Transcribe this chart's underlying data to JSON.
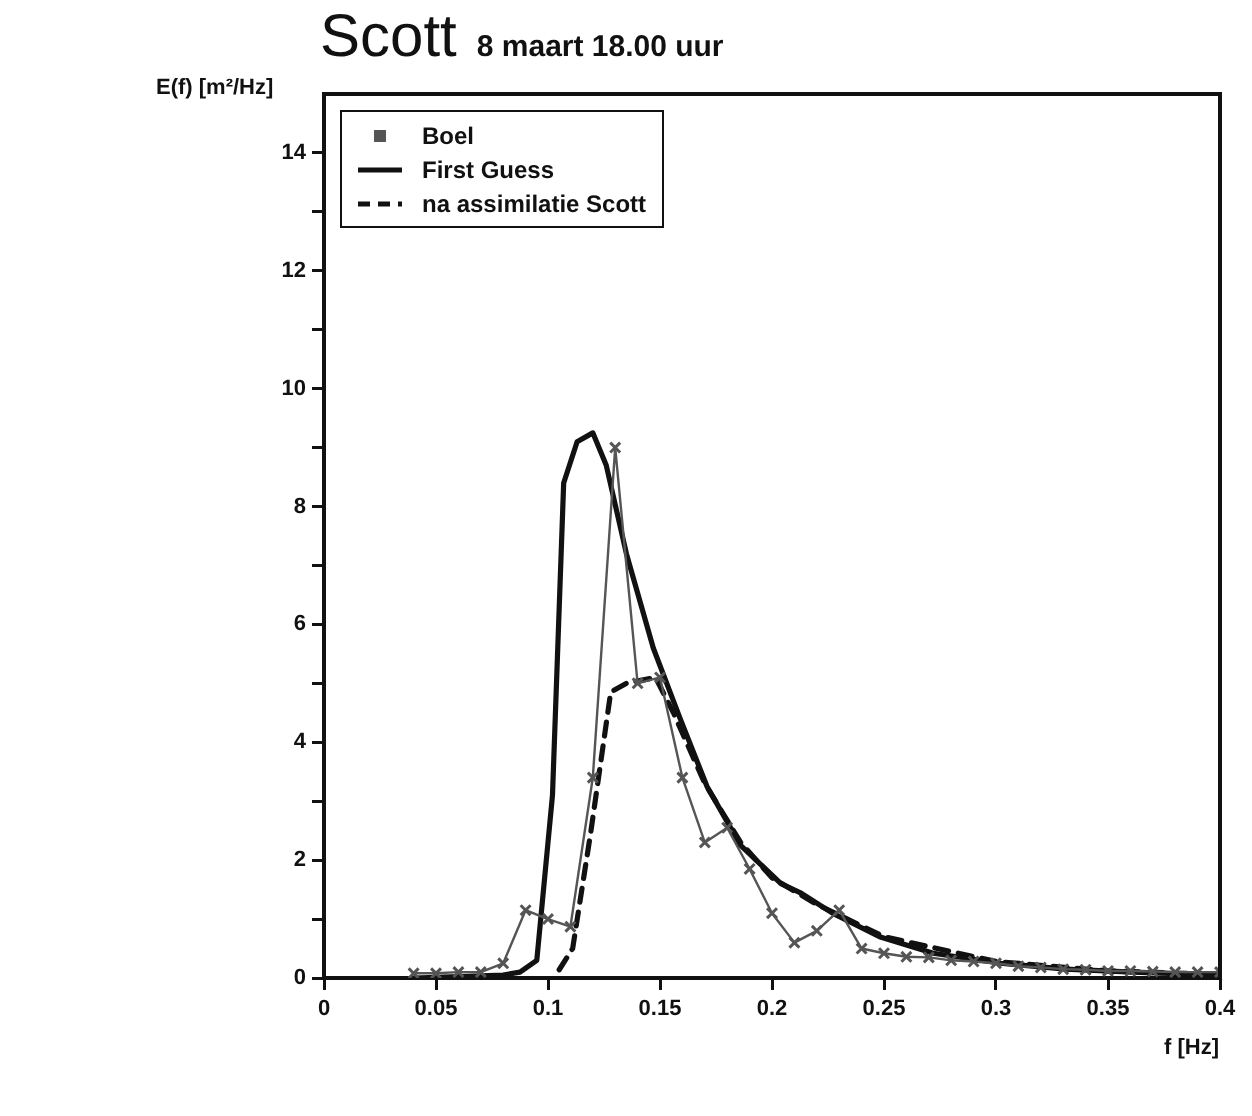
{
  "chart_data": {
    "type": "line",
    "title": "Scott",
    "subtitle": "8 maart 18.00 uur",
    "xlabel": "f [Hz]",
    "ylabel": "E(f) [m²/Hz]",
    "xlim": [
      0,
      0.4
    ],
    "xticks": [
      0,
      0.05,
      0.1,
      0.15,
      0.2,
      0.25,
      0.3,
      0.35,
      0.4
    ],
    "ylim": [
      0,
      15
    ],
    "yticks": [
      0,
      {
        "value": 1,
        "label": null
      },
      2,
      {
        "value": 3,
        "label": null
      },
      4,
      {
        "value": 5,
        "label": null
      },
      6,
      {
        "value": 7,
        "label": null
      },
      8,
      {
        "value": 9,
        "label": null
      },
      10,
      {
        "value": 11,
        "label": null
      },
      12,
      {
        "value": 13,
        "label": null
      },
      14
    ],
    "grid": false,
    "legend": "top left",
    "series": [
      {
        "name": "Boel",
        "color": "#555555",
        "marker": "cross",
        "line_style": "solid",
        "x": [
          0.04,
          0.05,
          0.06,
          0.07,
          0.08,
          0.09,
          0.1,
          0.11,
          0.12,
          0.13,
          0.14,
          0.15,
          0.16,
          0.17,
          0.18,
          0.19,
          0.2,
          0.21,
          0.22,
          0.23,
          0.24,
          0.25,
          0.26,
          0.27,
          0.28,
          0.29,
          0.3,
          0.31,
          0.32,
          0.33,
          0.34,
          0.35,
          0.36,
          0.37,
          0.38,
          0.39,
          0.4
        ],
        "values": [
          0.08,
          0.08,
          0.1,
          0.1,
          0.25,
          1.15,
          1.0,
          0.87,
          3.4,
          9.0,
          5.0,
          5.1,
          3.4,
          2.3,
          2.55,
          1.85,
          1.1,
          0.6,
          0.8,
          1.15,
          0.5,
          0.42,
          0.36,
          0.35,
          0.3,
          0.28,
          0.25,
          0.2,
          0.18,
          0.15,
          0.14,
          0.12,
          0.12,
          0.11,
          0.1,
          0.1,
          0.1
        ]
      },
      {
        "name": "First Guess",
        "color": "#111111",
        "marker": "none",
        "line_style": "solid",
        "x": [
          0.04,
          0.08,
          0.0875,
          0.095,
          0.102,
          0.107,
          0.113,
          0.12,
          0.126,
          0.135,
          0.147,
          0.159,
          0.171,
          0.186,
          0.204,
          0.2125,
          0.227,
          0.248,
          0.272,
          0.302,
          0.331,
          0.361,
          0.4
        ],
        "values": [
          0,
          0.05,
          0.1,
          0.3,
          3.1,
          8.4,
          9.1,
          9.25,
          8.7,
          7.2,
          5.6,
          4.4,
          3.25,
          2.25,
          1.6,
          1.45,
          1.1,
          0.7,
          0.42,
          0.25,
          0.15,
          0.1,
          0.05
        ]
      },
      {
        "name": "na assimilatie Scott",
        "color": "#111111",
        "marker": "none",
        "line_style": "dashed",
        "x": [
          0.105,
          0.111,
          0.119,
          0.128,
          0.135,
          0.148,
          0.156,
          0.17,
          0.186,
          0.2,
          0.22,
          0.25,
          0.3,
          0.35,
          0.4
        ],
        "values": [
          0.14,
          0.5,
          2.45,
          4.85,
          5.0,
          5.1,
          4.5,
          3.3,
          2.3,
          1.7,
          1.25,
          0.7,
          0.28,
          0.12,
          0.06
        ]
      }
    ]
  }
}
